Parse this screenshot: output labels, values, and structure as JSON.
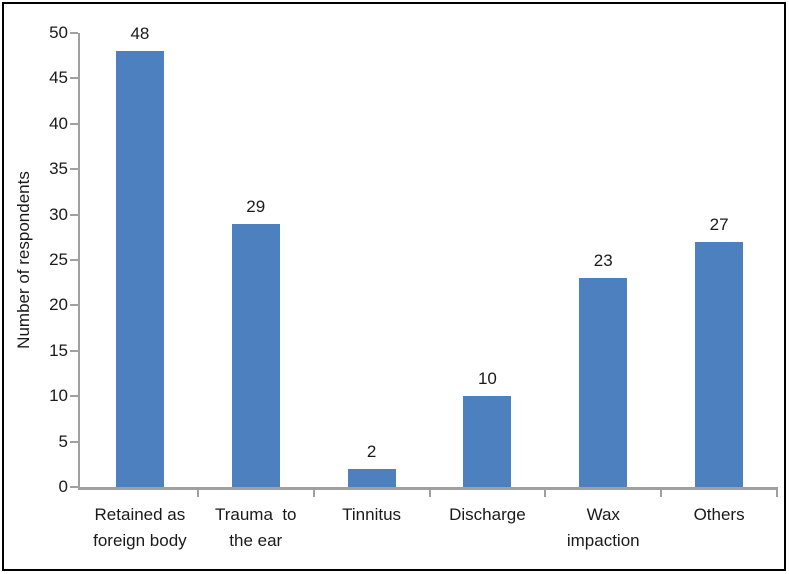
{
  "figure": {
    "background_color": "#ffffff",
    "frame_color": "#000000"
  },
  "chart_data": {
    "type": "bar",
    "categories": [
      "Retained as\nforeign body",
      "Trauma  to\nthe ear",
      "Tinnitus",
      "Discharge",
      "Wax\nimpaction",
      "Others"
    ],
    "values": [
      48,
      29,
      2,
      10,
      23,
      27
    ],
    "value_labels": [
      "48",
      "29",
      "2",
      "10",
      "23",
      "27"
    ],
    "title": "",
    "xlabel": "",
    "ylabel": "Number of respondents",
    "ylim": [
      0,
      50
    ],
    "yticks": [
      0,
      5,
      10,
      15,
      20,
      25,
      30,
      35,
      40,
      45,
      50
    ],
    "grid": false,
    "legend": false,
    "value_labels_shown": true,
    "bar_color": "#4C80BE",
    "axis_color": "#A0A0A0",
    "text_color": "#1a1a1a"
  }
}
